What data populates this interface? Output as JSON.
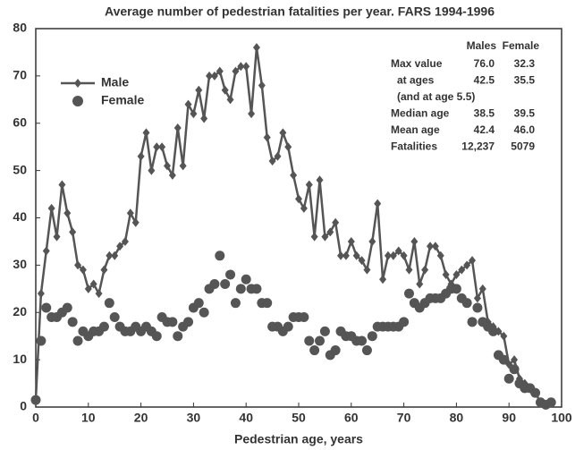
{
  "chart_data": {
    "type": "line",
    "title": "Average number of pedestrian fatalities per year.  FARS 1994-1996",
    "x_label": "Pedestrian age, years",
    "x": [
      0,
      1,
      2,
      3,
      4,
      5,
      6,
      7,
      8,
      9,
      10,
      11,
      12,
      13,
      14,
      15,
      16,
      17,
      18,
      19,
      20,
      21,
      22,
      23,
      24,
      25,
      26,
      27,
      28,
      29,
      30,
      31,
      32,
      33,
      34,
      35,
      36,
      37,
      38,
      39,
      40,
      41,
      42,
      43,
      44,
      45,
      46,
      47,
      48,
      49,
      50,
      51,
      52,
      53,
      54,
      55,
      56,
      57,
      58,
      59,
      60,
      61,
      62,
      63,
      64,
      65,
      66,
      67,
      68,
      69,
      70,
      71,
      72,
      73,
      74,
      75,
      76,
      77,
      78,
      79,
      80,
      81,
      82,
      83,
      84,
      85,
      86,
      87,
      88,
      89,
      90,
      91,
      92,
      93,
      94,
      95,
      96,
      97,
      98
    ],
    "series": [
      {
        "name": "Male",
        "color": "#555555",
        "marker": "diamond",
        "line": true,
        "values": [
          1.5,
          24,
          33,
          42,
          36,
          47,
          41,
          37,
          30,
          29,
          25,
          26,
          24,
          29,
          32,
          32,
          34,
          35,
          41,
          39,
          53,
          58,
          50,
          55,
          55,
          51,
          49,
          59,
          51,
          64,
          62,
          67,
          61,
          70,
          70,
          71,
          67,
          65,
          71,
          72,
          72,
          62,
          76,
          68,
          57,
          52,
          53,
          58,
          55,
          49,
          44,
          42,
          47,
          36,
          48,
          36,
          37,
          39,
          32,
          32,
          35,
          32,
          31,
          29,
          35,
          43,
          27,
          32,
          32,
          33,
          32,
          29,
          35,
          26,
          29,
          34,
          34,
          32,
          28,
          26,
          28,
          29,
          30,
          31,
          23,
          25,
          18,
          17,
          16,
          15,
          9,
          10,
          6,
          5,
          4,
          3,
          1,
          0.5,
          1
        ]
      },
      {
        "name": "Female",
        "color": "#555555",
        "marker": "circle",
        "line": false,
        "values": [
          1.5,
          14,
          21,
          19,
          19,
          20,
          21,
          18,
          14,
          16,
          15,
          16,
          16,
          17,
          22,
          19,
          17,
          16,
          16,
          17,
          16,
          17,
          16,
          15,
          19,
          18,
          18,
          15,
          17,
          18,
          21,
          22,
          20,
          25,
          26,
          32,
          26,
          28,
          22,
          25,
          27,
          25,
          25,
          22,
          22,
          17,
          17,
          16,
          17,
          19,
          19,
          19,
          14,
          12,
          14,
          16,
          11,
          12,
          16,
          15,
          15,
          14,
          14,
          12,
          15,
          17,
          17,
          17,
          17,
          17,
          18,
          24,
          22,
          21,
          22,
          23,
          23,
          23,
          24,
          25,
          25,
          23,
          22,
          18,
          21,
          18,
          17,
          16,
          11,
          10,
          6,
          8,
          5,
          4,
          4,
          3,
          1,
          0.5,
          1
        ]
      }
    ],
    "xlim": [
      0,
      100
    ],
    "xticks": [
      0,
      10,
      20,
      30,
      40,
      50,
      60,
      70,
      80,
      90,
      100
    ],
    "ylim": [
      0,
      80
    ],
    "yticks": [
      0,
      10,
      20,
      30,
      40,
      50,
      60,
      70,
      80
    ],
    "stats": {
      "header": [
        "Males",
        "Female"
      ],
      "rows": [
        [
          "Max value",
          "76.0",
          "32.3"
        ],
        [
          "at ages",
          "42.5",
          "35.5"
        ],
        [
          "(and at age 5.5)"
        ],
        [
          "Median age",
          "38.5",
          "39.5"
        ],
        [
          "Mean age",
          "42.4",
          "46.0"
        ],
        [
          "Fatalities",
          "12,237",
          "5079"
        ]
      ]
    }
  }
}
